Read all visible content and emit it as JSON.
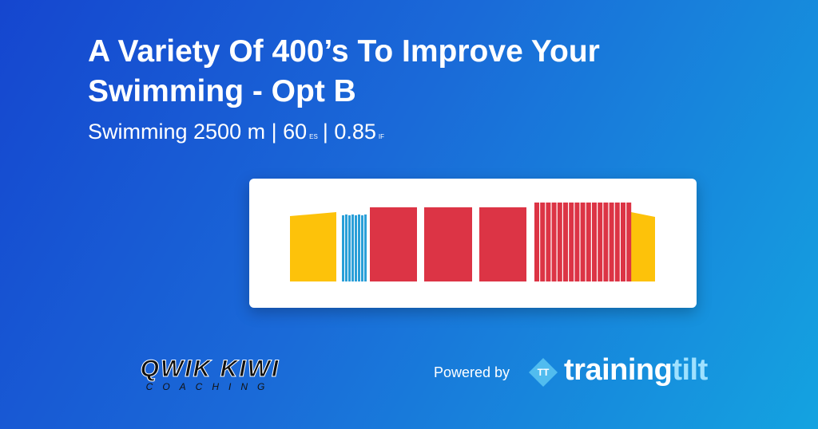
{
  "header": {
    "title": "A Variety Of 400’s To Improve Your Swimming - Opt B",
    "subtitle": {
      "main": "Swimming 2500 m | 60",
      "es_unit": "ES",
      "rest": "| 0.85",
      "if_unit": "IF"
    }
  },
  "footer": {
    "coach_logo": "QWIK KIWI",
    "coach_tagline": "COACHING",
    "powered_by": "Powered by",
    "brand_icon": "TT",
    "brand_main": "training",
    "brand_accent": "tilt"
  }
}
